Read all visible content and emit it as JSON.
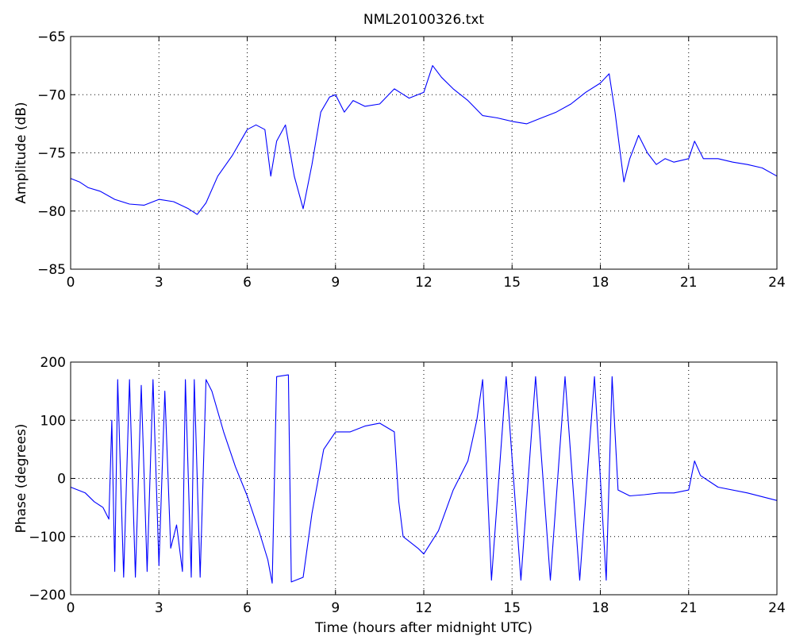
{
  "figure": {
    "title": "NML20100326.txt"
  },
  "chart_data": [
    {
      "type": "line",
      "title": "NML20100326.txt",
      "xlabel": "",
      "ylabel": "Amplitude (dB)",
      "xlim": [
        0,
        24
      ],
      "ylim": [
        -85,
        -65
      ],
      "xticks": [
        0,
        3,
        6,
        9,
        12,
        15,
        18,
        21,
        24
      ],
      "yticks": [
        -85,
        -80,
        -75,
        -70,
        -65
      ],
      "grid": true,
      "line_color": "#0000ff",
      "series": [
        {
          "x": [
            0,
            0.3,
            0.6,
            1.0,
            1.5,
            2.0,
            2.5,
            3.0,
            3.5,
            4.0,
            4.3,
            4.6,
            5.0,
            5.5,
            6.0,
            6.3,
            6.6,
            6.8,
            7.0,
            7.3,
            7.6,
            7.9,
            8.2,
            8.5,
            8.8,
            9.0,
            9.3,
            9.6,
            10.0,
            10.5,
            11.0,
            11.5,
            12.0,
            12.3,
            12.6,
            13.0,
            13.5,
            14.0,
            14.5,
            15.0,
            15.5,
            16.0,
            16.5,
            17.0,
            17.5,
            18.0,
            18.3,
            18.5,
            18.8,
            19.0,
            19.3,
            19.6,
            19.9,
            20.2,
            20.5,
            21.0,
            21.2,
            21.5,
            22.0,
            22.5,
            23.0,
            23.5,
            24.0
          ],
          "y": [
            -77.2,
            -77.5,
            -78.0,
            -78.3,
            -79.0,
            -79.4,
            -79.5,
            -79.0,
            -79.2,
            -79.8,
            -80.3,
            -79.3,
            -77.0,
            -75.2,
            -73.0,
            -72.6,
            -73.0,
            -77.0,
            -74.0,
            -72.6,
            -77.0,
            -79.8,
            -76.0,
            -71.5,
            -70.2,
            -70.0,
            -71.5,
            -70.5,
            -71.0,
            -70.8,
            -69.5,
            -70.3,
            -69.8,
            -67.5,
            -68.5,
            -69.5,
            -70.5,
            -71.8,
            -72.0,
            -72.3,
            -72.5,
            -72.0,
            -71.5,
            -70.8,
            -69.8,
            -69.0,
            -68.2,
            -71.5,
            -77.5,
            -75.5,
            -73.5,
            -75.0,
            -76.0,
            -75.5,
            -75.8,
            -75.5,
            -74.0,
            -75.5,
            -75.5,
            -75.8,
            -76.0,
            -76.3,
            -77.0
          ]
        }
      ]
    },
    {
      "type": "line",
      "title": "",
      "xlabel": "Time (hours after midnight UTC)",
      "ylabel": "Phase (degrees)",
      "xlim": [
        0,
        24
      ],
      "ylim": [
        -200,
        200
      ],
      "xticks": [
        0,
        3,
        6,
        9,
        12,
        15,
        18,
        21,
        24
      ],
      "yticks": [
        -200,
        -100,
        0,
        100,
        200
      ],
      "grid": true,
      "line_color": "#0000ff",
      "series": [
        {
          "x": [
            0,
            0.5,
            0.8,
            1.1,
            1.3,
            1.4,
            1.5,
            1.6,
            1.8,
            2.0,
            2.2,
            2.4,
            2.6,
            2.8,
            3.0,
            3.2,
            3.4,
            3.6,
            3.8,
            3.9,
            4.1,
            4.2,
            4.4,
            4.6,
            4.8,
            5.2,
            5.6,
            6.0,
            6.4,
            6.7,
            6.85,
            7.0,
            7.4,
            7.5,
            7.9,
            8.2,
            8.6,
            9.0,
            9.5,
            10.0,
            10.5,
            11.0,
            11.15,
            11.3,
            11.8,
            12.0,
            12.5,
            13.0,
            13.5,
            13.8,
            14.0,
            14.3,
            14.8,
            15.3,
            15.8,
            16.3,
            16.8,
            17.3,
            17.8,
            18.2,
            18.4,
            18.6,
            19.0,
            19.5,
            20.0,
            20.5,
            21.0,
            21.2,
            21.4,
            22.0,
            23.0,
            24.0
          ],
          "y": [
            -15,
            -25,
            -40,
            -50,
            -70,
            100,
            -160,
            170,
            -170,
            170,
            -170,
            160,
            -160,
            170,
            -150,
            150,
            -120,
            -80,
            -160,
            170,
            -170,
            170,
            -170,
            170,
            150,
            80,
            20,
            -30,
            -90,
            -140,
            -180,
            175,
            178,
            -178,
            -170,
            -60,
            50,
            80,
            80,
            90,
            95,
            80,
            -40,
            -100,
            -120,
            -130,
            -90,
            -20,
            30,
            100,
            170,
            -175,
            175,
            -175,
            175,
            -175,
            175,
            -175,
            175,
            -175,
            175,
            -20,
            -30,
            -28,
            -25,
            -25,
            -20,
            30,
            5,
            -15,
            -25,
            -38
          ]
        }
      ]
    }
  ]
}
